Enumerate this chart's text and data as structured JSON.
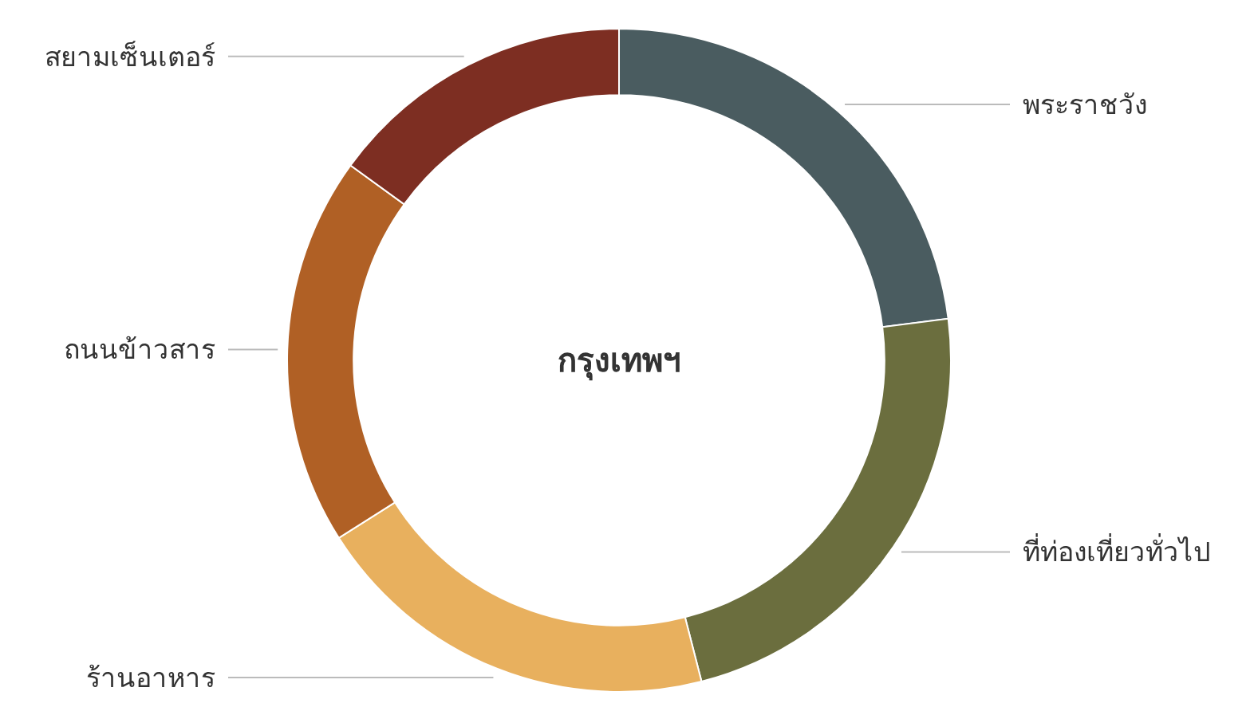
{
  "chart_data": {
    "type": "donut",
    "title": "กรุงเทพฯ",
    "categories": [
      "พระราชวัง",
      "ที่ท่องเที่ยวทั่วไป",
      "ร้านอาหาร",
      "ถนนข้าวสาร",
      "สยามเซ็นเตอร์"
    ],
    "values": [
      23,
      23,
      20,
      19,
      15
    ],
    "colors": [
      "#4a5c60",
      "#6b6e3e",
      "#e8b05e",
      "#b06025",
      "#7d2e22"
    ],
    "legend": false
  }
}
